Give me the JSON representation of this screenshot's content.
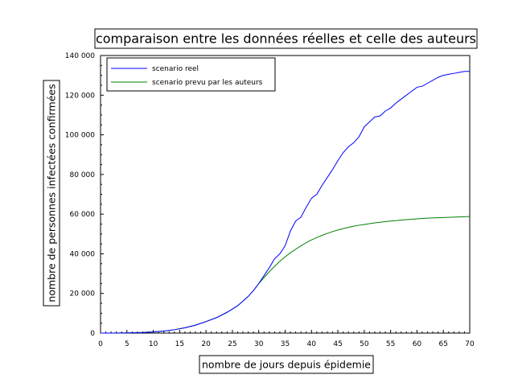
{
  "chart_data": {
    "type": "line",
    "title": "comparaison entre les données réelles et celle des auteurs",
    "xlabel": "nombre de jours depuis épidemie",
    "ylabel": "nombre de personnes infectées confirmées",
    "xlim": [
      0,
      70
    ],
    "ylim": [
      0,
      140000
    ],
    "xticks": [
      "0",
      "5",
      "10",
      "15",
      "20",
      "25",
      "30",
      "35",
      "40",
      "45",
      "50",
      "55",
      "60",
      "65",
      "70"
    ],
    "yticks": [
      "0",
      "20 000",
      "40 000",
      "60 000",
      "80 000",
      "100 000",
      "120 000",
      "140 000"
    ],
    "grid": false,
    "legend_position": "top-left",
    "colors": {
      "real": "#0000ff",
      "predicted": "#008000"
    },
    "series": [
      {
        "name": "scenario reel",
        "x": [
          0,
          2,
          4,
          6,
          8,
          10,
          12,
          14,
          16,
          18,
          20,
          22,
          24,
          26,
          28,
          29,
          30,
          31,
          32,
          33,
          34,
          35,
          36,
          37,
          38,
          39,
          40,
          41,
          42,
          43,
          44,
          45,
          46,
          47,
          48,
          49,
          50,
          51,
          52,
          53,
          54,
          55,
          56,
          57,
          58,
          59,
          60,
          61,
          62,
          63,
          64,
          65,
          66,
          67,
          68,
          69,
          70
        ],
        "values": [
          0,
          20,
          60,
          150,
          300,
          600,
          1000,
          1700,
          2700,
          4000,
          5800,
          7800,
          10500,
          13800,
          18500,
          21500,
          25000,
          29000,
          33000,
          37500,
          40000,
          44000,
          51500,
          56500,
          58500,
          63500,
          68000,
          70000,
          74500,
          78500,
          82500,
          87000,
          91000,
          94000,
          96000,
          99000,
          104000,
          106500,
          109000,
          109500,
          112000,
          113500,
          116000,
          118000,
          120000,
          122000,
          124000,
          124500,
          126000,
          127500,
          129000,
          130000,
          130500,
          131000,
          131500,
          132000,
          132000
        ]
      },
      {
        "name": "scenario prevu par les auteurs",
        "x": [
          0,
          2,
          4,
          6,
          8,
          10,
          12,
          14,
          16,
          18,
          20,
          22,
          24,
          26,
          28,
          29,
          30,
          31,
          32,
          33,
          34,
          35,
          36,
          37,
          38,
          39,
          40,
          41,
          42,
          43,
          44,
          45,
          46,
          47,
          48,
          49,
          50,
          51,
          52,
          53,
          54,
          55,
          56,
          57,
          58,
          59,
          60,
          61,
          62,
          63,
          64,
          65,
          66,
          67,
          68,
          69,
          70
        ],
        "values": [
          0,
          20,
          60,
          150,
          300,
          600,
          1000,
          1700,
          2700,
          4000,
          5800,
          7800,
          10500,
          13800,
          18500,
          21500,
          25000,
          28000,
          31000,
          33700,
          36200,
          38500,
          40500,
          42300,
          44000,
          45600,
          47000,
          48200,
          49300,
          50300,
          51200,
          52000,
          52700,
          53300,
          53900,
          54400,
          54800,
          55200,
          55600,
          55900,
          56200,
          56500,
          56700,
          57000,
          57200,
          57400,
          57600,
          57800,
          58000,
          58100,
          58200,
          58300,
          58400,
          58500,
          58600,
          58700,
          58800
        ]
      }
    ]
  }
}
